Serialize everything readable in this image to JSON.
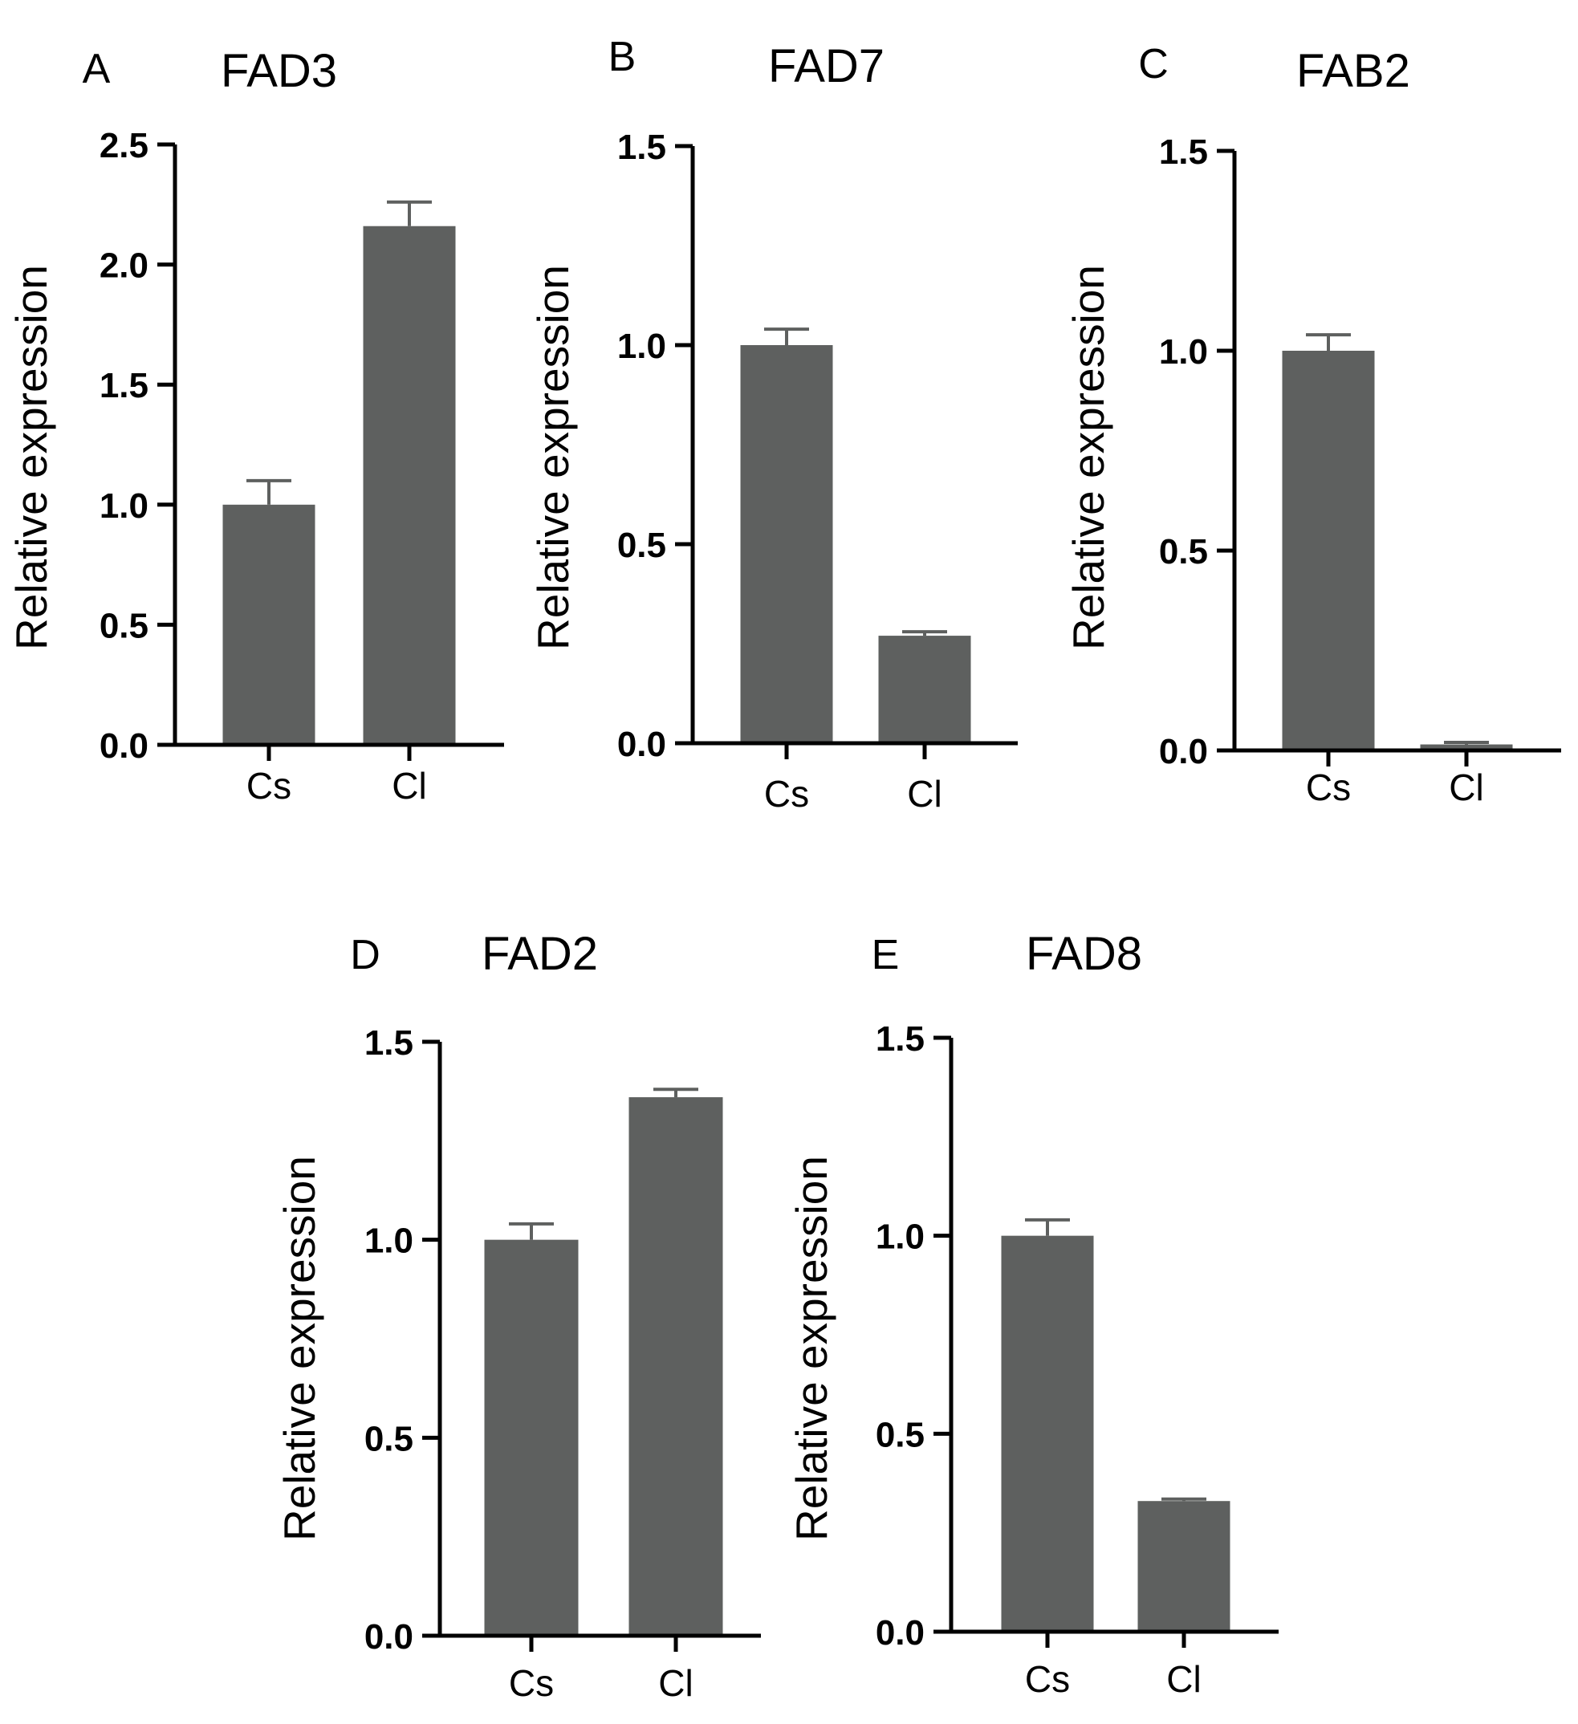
{
  "chart_data": [
    {
      "type": "bar",
      "panel": "A",
      "title": "FAD3",
      "ylabel": "Relative expression",
      "xlabel": "",
      "categories": [
        "Cs",
        "Cl"
      ],
      "values": [
        1.0,
        2.16
      ],
      "errors": [
        0.1,
        0.1
      ],
      "ylim": [
        0,
        2.5
      ],
      "yticks": [
        "0.0",
        "0.5",
        "1.0",
        "1.5",
        "2.0",
        "2.5"
      ],
      "ytick_values": [
        0,
        0.5,
        1.0,
        1.5,
        2.0,
        2.5
      ],
      "bar_color": "#5e605f"
    },
    {
      "type": "bar",
      "panel": "B",
      "title": "FAD7",
      "ylabel": "Relative expression",
      "xlabel": "",
      "categories": [
        "Cs",
        "Cl"
      ],
      "values": [
        1.0,
        0.27
      ],
      "errors": [
        0.04,
        0.01
      ],
      "ylim": [
        0,
        1.5
      ],
      "yticks": [
        "0.0",
        "0.5",
        "1.0",
        "1.5"
      ],
      "ytick_values": [
        0,
        0.5,
        1.0,
        1.5
      ],
      "bar_color": "#5e605f"
    },
    {
      "type": "bar",
      "panel": "C",
      "title": "FAB2",
      "ylabel": "Relative expression",
      "xlabel": "",
      "categories": [
        "Cs",
        "Cl"
      ],
      "values": [
        1.0,
        0.015
      ],
      "errors": [
        0.04,
        0.005
      ],
      "ylim": [
        0,
        1.5
      ],
      "yticks": [
        "0.0",
        "0.5",
        "1.0",
        "1.5"
      ],
      "ytick_values": [
        0,
        0.5,
        1.0,
        1.5
      ],
      "bar_color": "#5e605f"
    },
    {
      "type": "bar",
      "panel": "D",
      "title": "FAD2",
      "ylabel": "Relative expression",
      "xlabel": "",
      "categories": [
        "Cs",
        "Cl"
      ],
      "values": [
        1.0,
        1.36
      ],
      "errors": [
        0.04,
        0.02
      ],
      "ylim": [
        0,
        1.5
      ],
      "yticks": [
        "0.0",
        "0.5",
        "1.0",
        "1.5"
      ],
      "ytick_values": [
        0,
        0.5,
        1.0,
        1.5
      ],
      "bar_color": "#5e605f"
    },
    {
      "type": "bar",
      "panel": "E",
      "title": "FAD8",
      "ylabel": "Relative expression",
      "xlabel": "",
      "categories": [
        "Cs",
        "Cl"
      ],
      "values": [
        1.0,
        0.33
      ],
      "errors": [
        0.04,
        0.005
      ],
      "ylim": [
        0,
        1.5
      ],
      "yticks": [
        "0.0",
        "0.5",
        "1.0",
        "1.5"
      ],
      "ytick_values": [
        0,
        0.5,
        1.0,
        1.5
      ],
      "bar_color": "#5e605f"
    }
  ]
}
